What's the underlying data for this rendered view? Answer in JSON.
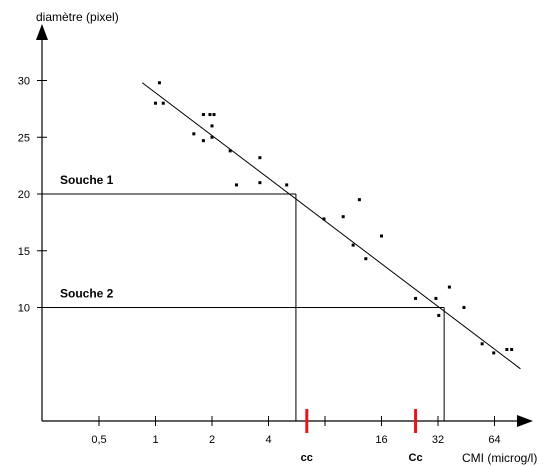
{
  "chart_data": {
    "type": "scatter",
    "title": "",
    "xlabel": "CMI (microg/l)",
    "ylabel": "diamètre (pixel)",
    "x_scale": "log2",
    "x_ticks": [
      0.5,
      1,
      2,
      4,
      8,
      16,
      32,
      64
    ],
    "x_tick_labels": [
      "0,5",
      "1",
      "2",
      "4",
      "",
      "16",
      "32",
      "64"
    ],
    "y_ticks": [
      10,
      15,
      20,
      25,
      30
    ],
    "y_tick_labels": [
      "10",
      "15",
      "20",
      "25",
      "30"
    ],
    "xlim": [
      0.25,
      120
    ],
    "ylim": [
      0,
      34
    ],
    "grid": false,
    "points": [
      {
        "x": 1.0,
        "y": 28.0
      },
      {
        "x": 1.05,
        "y": 29.8
      },
      {
        "x": 1.1,
        "y": 28.0
      },
      {
        "x": 1.6,
        "y": 25.3
      },
      {
        "x": 1.8,
        "y": 27.0
      },
      {
        "x": 1.8,
        "y": 24.7
      },
      {
        "x": 1.95,
        "y": 27.0
      },
      {
        "x": 2.05,
        "y": 27.0
      },
      {
        "x": 2.0,
        "y": 26.0
      },
      {
        "x": 2.0,
        "y": 25.0
      },
      {
        "x": 2.5,
        "y": 23.8
      },
      {
        "x": 2.7,
        "y": 20.8
      },
      {
        "x": 3.6,
        "y": 23.2
      },
      {
        "x": 3.6,
        "y": 21.0
      },
      {
        "x": 5.0,
        "y": 20.8
      },
      {
        "x": 7.9,
        "y": 17.8
      },
      {
        "x": 10.0,
        "y": 18.0
      },
      {
        "x": 11.3,
        "y": 15.5
      },
      {
        "x": 12.2,
        "y": 19.5
      },
      {
        "x": 13.2,
        "y": 14.3
      },
      {
        "x": 16.0,
        "y": 16.3
      },
      {
        "x": 24.3,
        "y": 10.8
      },
      {
        "x": 31.2,
        "y": 10.8
      },
      {
        "x": 32.3,
        "y": 9.3
      },
      {
        "x": 36.8,
        "y": 11.8
      },
      {
        "x": 44.0,
        "y": 10.0
      },
      {
        "x": 55.0,
        "y": 6.8
      },
      {
        "x": 63.4,
        "y": 6.0
      },
      {
        "x": 74.5,
        "y": 6.3
      },
      {
        "x": 79.0,
        "y": 6.3
      }
    ],
    "regression_line": {
      "from": {
        "x": 0.85,
        "y": 29.8
      },
      "to": {
        "x": 88.0,
        "y": 4.6
      }
    },
    "guides": [
      {
        "label": "Souche 1",
        "y": 20,
        "x": 5.6
      },
      {
        "label": "Souche 2",
        "y": 10,
        "x": 34.5
      }
    ],
    "markers": [
      {
        "label": "cc",
        "x": 6.4,
        "color": "#e8141c"
      },
      {
        "label": "Cc",
        "x": 24.3,
        "color": "#e8141c"
      }
    ]
  }
}
